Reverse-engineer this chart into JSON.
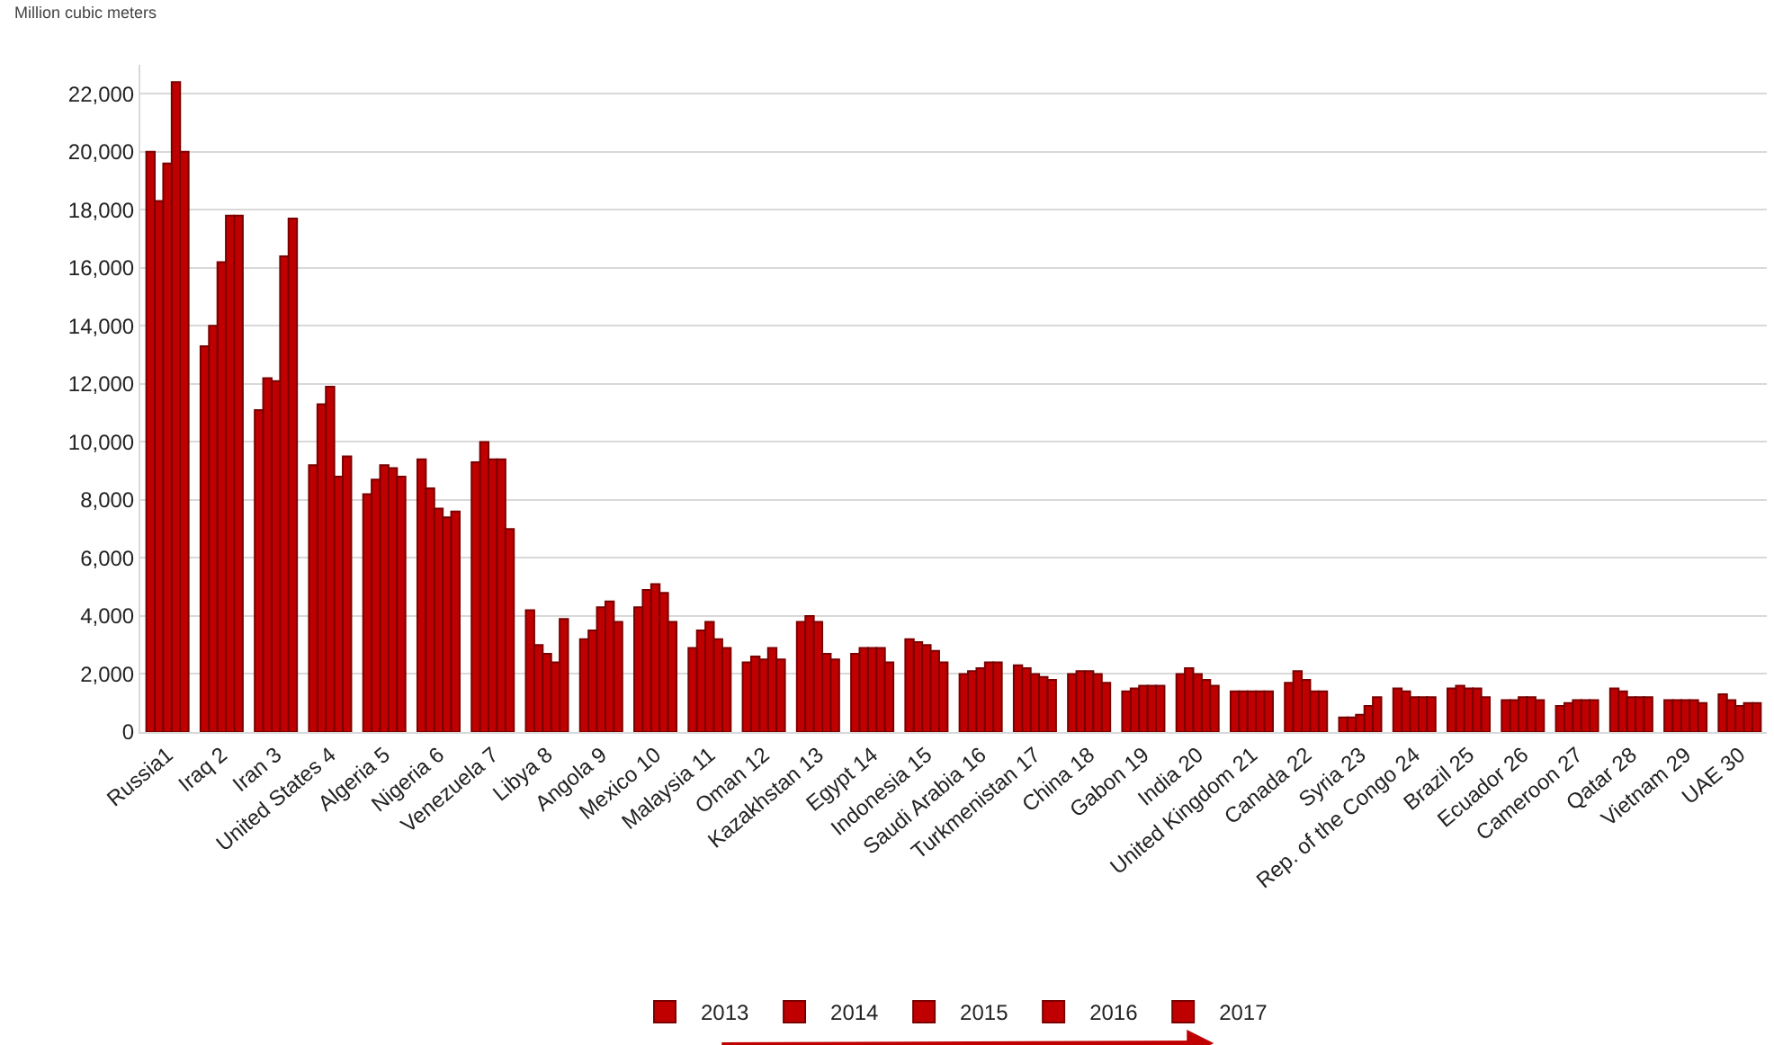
{
  "chart_data": {
    "type": "bar",
    "ylabel": "Million cubic meters",
    "categories": [
      "Russia1",
      "Iraq 2",
      "Iran 3",
      "United States 4",
      "Algeria 5",
      "Nigeria 6",
      "Venezuela 7",
      "Libya 8",
      "Angola 9",
      "Mexico 10",
      "Malaysia 11",
      "Oman 12",
      "Kazakhstan 13",
      "Egypt 14",
      "Indonesia 15",
      "Saudi Arabia 16",
      "Turkmenistan 17",
      "China 18",
      "Gabon 19",
      "India 20",
      "United Kingdom 21",
      "Canada 22",
      "Syria 23",
      "Rep. of the Congo 24",
      "Brazil 25",
      "Ecuador 26",
      "Cameroon 27",
      "Qatar 28",
      "Vietnam 29",
      "UAE 30"
    ],
    "series": [
      {
        "name": "2013",
        "color": "#c00000",
        "values": [
          20000,
          13300,
          11100,
          9200,
          8200,
          9400,
          9300,
          4200,
          3200,
          4300,
          2900,
          2400,
          3800,
          2700,
          3200,
          2000,
          2300,
          2000,
          1400,
          2000,
          1400,
          1700,
          500,
          1500,
          1500,
          1100,
          900,
          1500,
          1100,
          1300
        ]
      },
      {
        "name": "2014",
        "color": "#c00000",
        "values": [
          18300,
          14000,
          12200,
          11300,
          8700,
          8400,
          10000,
          3000,
          3500,
          4900,
          3500,
          2600,
          4000,
          2900,
          3100,
          2100,
          2200,
          2100,
          1500,
          2200,
          1400,
          2100,
          500,
          1400,
          1600,
          1100,
          1000,
          1400,
          1100,
          1100
        ]
      },
      {
        "name": "2015",
        "color": "#c00000",
        "values": [
          19600,
          16200,
          12100,
          11900,
          9200,
          7700,
          9400,
          2700,
          4300,
          5100,
          3800,
          2500,
          3800,
          2900,
          3000,
          2200,
          2000,
          2100,
          1600,
          2000,
          1400,
          1800,
          600,
          1200,
          1500,
          1200,
          1100,
          1200,
          1100,
          900
        ]
      },
      {
        "name": "2016",
        "color": "#c00000",
        "values": [
          22400,
          17800,
          16400,
          8800,
          9100,
          7400,
          9400,
          2400,
          4500,
          4800,
          3200,
          2900,
          2700,
          2900,
          2800,
          2400,
          1900,
          2000,
          1600,
          1800,
          1400,
          1400,
          900,
          1200,
          1500,
          1200,
          1100,
          1200,
          1100,
          1000
        ]
      },
      {
        "name": "2017",
        "color": "#c00000",
        "values": [
          20000,
          17800,
          17700,
          9500,
          8800,
          7600,
          7000,
          3900,
          3800,
          3800,
          2900,
          2500,
          2500,
          2400,
          2400,
          2400,
          1800,
          1700,
          1600,
          1600,
          1400,
          1400,
          1200,
          1200,
          1200,
          1100,
          1100,
          1200,
          1000,
          1000
        ]
      }
    ],
    "ylim": [
      0,
      23000
    ],
    "yticks": [
      {
        "value": 0,
        "label": "0"
      },
      {
        "value": 2000,
        "label": "2,000"
      },
      {
        "value": 4000,
        "label": "4,000"
      },
      {
        "value": 6000,
        "label": "6,000"
      },
      {
        "value": 8000,
        "label": "8,000"
      },
      {
        "value": 10000,
        "label": "10,000"
      },
      {
        "value": 12000,
        "label": "12,000"
      },
      {
        "value": 14000,
        "label": "14,000"
      },
      {
        "value": 16000,
        "label": "16,000"
      },
      {
        "value": 18000,
        "label": "18,000"
      },
      {
        "value": 20000,
        "label": "20,000"
      },
      {
        "value": 22000,
        "label": "22,000"
      }
    ],
    "grid": "y",
    "legend": "bottom"
  }
}
